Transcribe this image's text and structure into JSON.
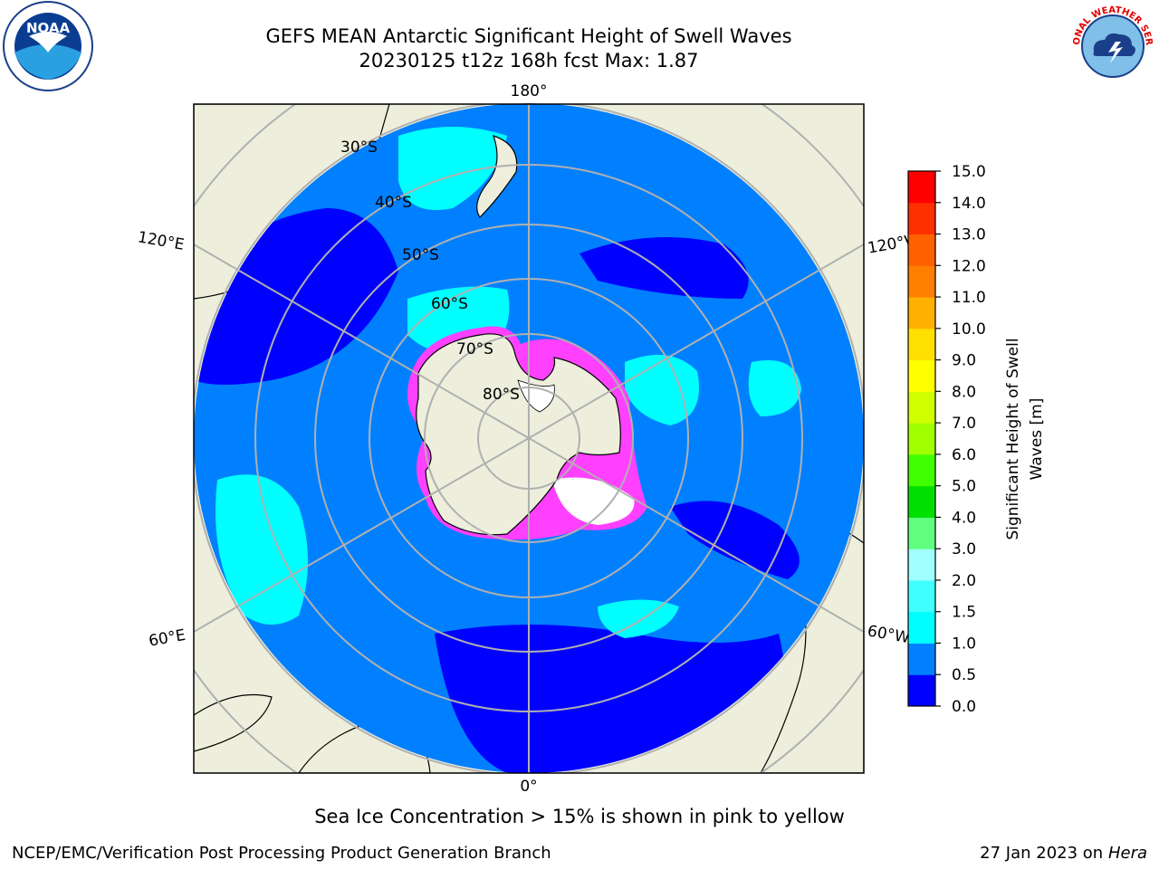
{
  "title": {
    "line1": "GEFS MEAN Antarctic Significant Height of Swell Waves",
    "line2": "20230125 t12z 168h fcst   Max: 1.87"
  },
  "map": {
    "projection": "south polar stereographic",
    "meridian_labels": {
      "top": "180°",
      "bottom": "0°",
      "upper_left": "120°E",
      "lower_left": "60°E",
      "upper_right": "120°W",
      "lower_right": "60°W"
    },
    "latitude_labels": [
      "30°S",
      "40°S",
      "50°S",
      "60°S",
      "70°S",
      "80°S"
    ],
    "colors": {
      "land": "#eeeedd",
      "ocean_0_0.5": "#0000ff",
      "ocean_0.5_1.0": "#0080ff",
      "ocean_1.0_1.5": "#00ffff",
      "ice_edge": "#ff40ff",
      "ice_core": "#ffffff"
    }
  },
  "colorbar": {
    "label": "Significant Height of Swell Waves [m]",
    "ticks": [
      "0.0",
      "0.5",
      "1.0",
      "1.5",
      "2.0",
      "3.0",
      "4.0",
      "5.0",
      "6.0",
      "7.0",
      "8.0",
      "9.0",
      "10.0",
      "11.0",
      "12.0",
      "13.0",
      "14.0",
      "15.0"
    ],
    "colors": [
      "#0000ff",
      "#0080ff",
      "#00ffff",
      "#40ffff",
      "#a0ffff",
      "#60ff80",
      "#00e000",
      "#40ff00",
      "#a0ff00",
      "#d0ff00",
      "#ffff00",
      "#ffe000",
      "#ffb000",
      "#ff8000",
      "#ff6000",
      "#ff3000",
      "#ff0000"
    ]
  },
  "footnote": "Sea Ice Concentration > 15% is shown in pink to yellow",
  "credit": "NCEP/EMC/Verification Post Processing Product Generation Branch",
  "date": {
    "text": "27 Jan 2023 on ",
    "machine": "Hera"
  },
  "logos": {
    "left": "NOAA",
    "right": "NATIONAL WEATHER SERVICE"
  }
}
